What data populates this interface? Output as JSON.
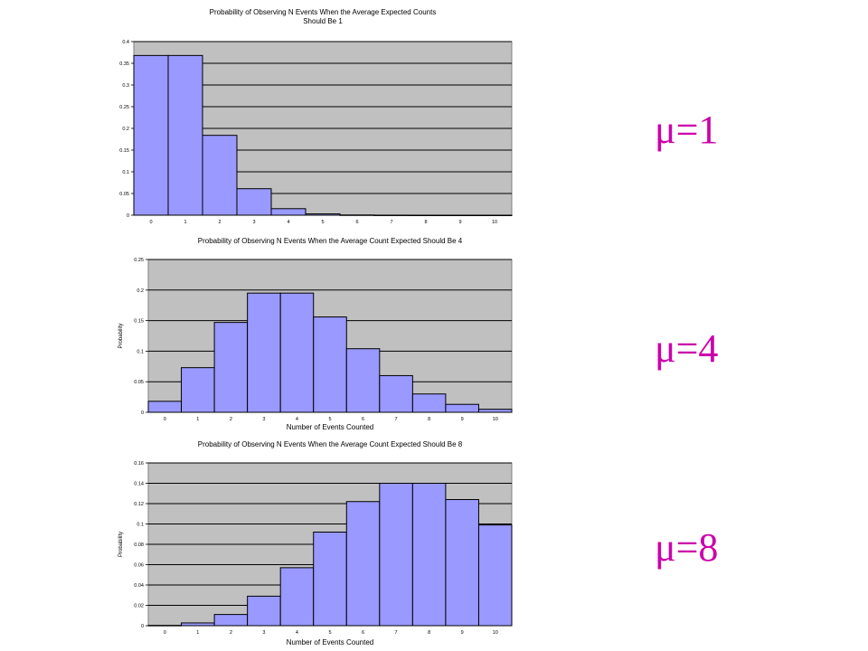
{
  "mu_labels": [
    "μ=1",
    "μ=4",
    "μ=8"
  ],
  "chart_data": [
    {
      "type": "bar",
      "title": [
        "Probability of Observing N Events When the Average Expected Counts",
        "Should Be 1"
      ],
      "xlabel": "",
      "ylabel": "",
      "categories": [
        "0",
        "1",
        "2",
        "3",
        "4",
        "5",
        "6",
        "7",
        "8",
        "9",
        "10"
      ],
      "values": [
        0.368,
        0.368,
        0.184,
        0.061,
        0.015,
        0.003,
        0.0005,
        0.0001,
        0,
        0,
        0
      ],
      "ylim": [
        0,
        0.4
      ],
      "yticks": [
        "0",
        "0.05",
        "0.1",
        "0.15",
        "0.2",
        "0.25",
        "0.3",
        "0.35",
        "0.4"
      ],
      "grid": true,
      "bar_color": "#9999ff",
      "plot_bg": "#c0c0c0"
    },
    {
      "type": "bar",
      "title": [
        "Probability of Observing N Events When the Average Count Expected Should Be 4"
      ],
      "xlabel": "Number of Events Counted",
      "ylabel": "Probability",
      "categories": [
        "0",
        "1",
        "2",
        "3",
        "4",
        "5",
        "6",
        "7",
        "8",
        "9",
        "10"
      ],
      "values": [
        0.018,
        0.073,
        0.147,
        0.195,
        0.195,
        0.156,
        0.104,
        0.06,
        0.03,
        0.013,
        0.005
      ],
      "ylim": [
        0,
        0.25
      ],
      "yticks": [
        "0",
        "0.05",
        "0.1",
        "0.15",
        "0.2",
        "0.25"
      ],
      "grid": true,
      "bar_color": "#9999ff",
      "plot_bg": "#c0c0c0"
    },
    {
      "type": "bar",
      "title": [
        "Probability of Observing N Events When the Average Count Expected Should Be 8"
      ],
      "xlabel": "Number of Events Counted",
      "ylabel": "Probability",
      "categories": [
        "0",
        "1",
        "2",
        "3",
        "4",
        "5",
        "6",
        "7",
        "8",
        "9",
        "10"
      ],
      "values": [
        0.0003,
        0.0027,
        0.011,
        0.029,
        0.057,
        0.092,
        0.122,
        0.14,
        0.14,
        0.124,
        0.099
      ],
      "ylim": [
        0,
        0.16
      ],
      "yticks": [
        "0",
        "0.02",
        "0.04",
        "0.06",
        "0.08",
        "0.1",
        "0.12",
        "0.14",
        "0.16"
      ],
      "grid": true,
      "bar_color": "#9999ff",
      "plot_bg": "#c0c0c0"
    }
  ]
}
